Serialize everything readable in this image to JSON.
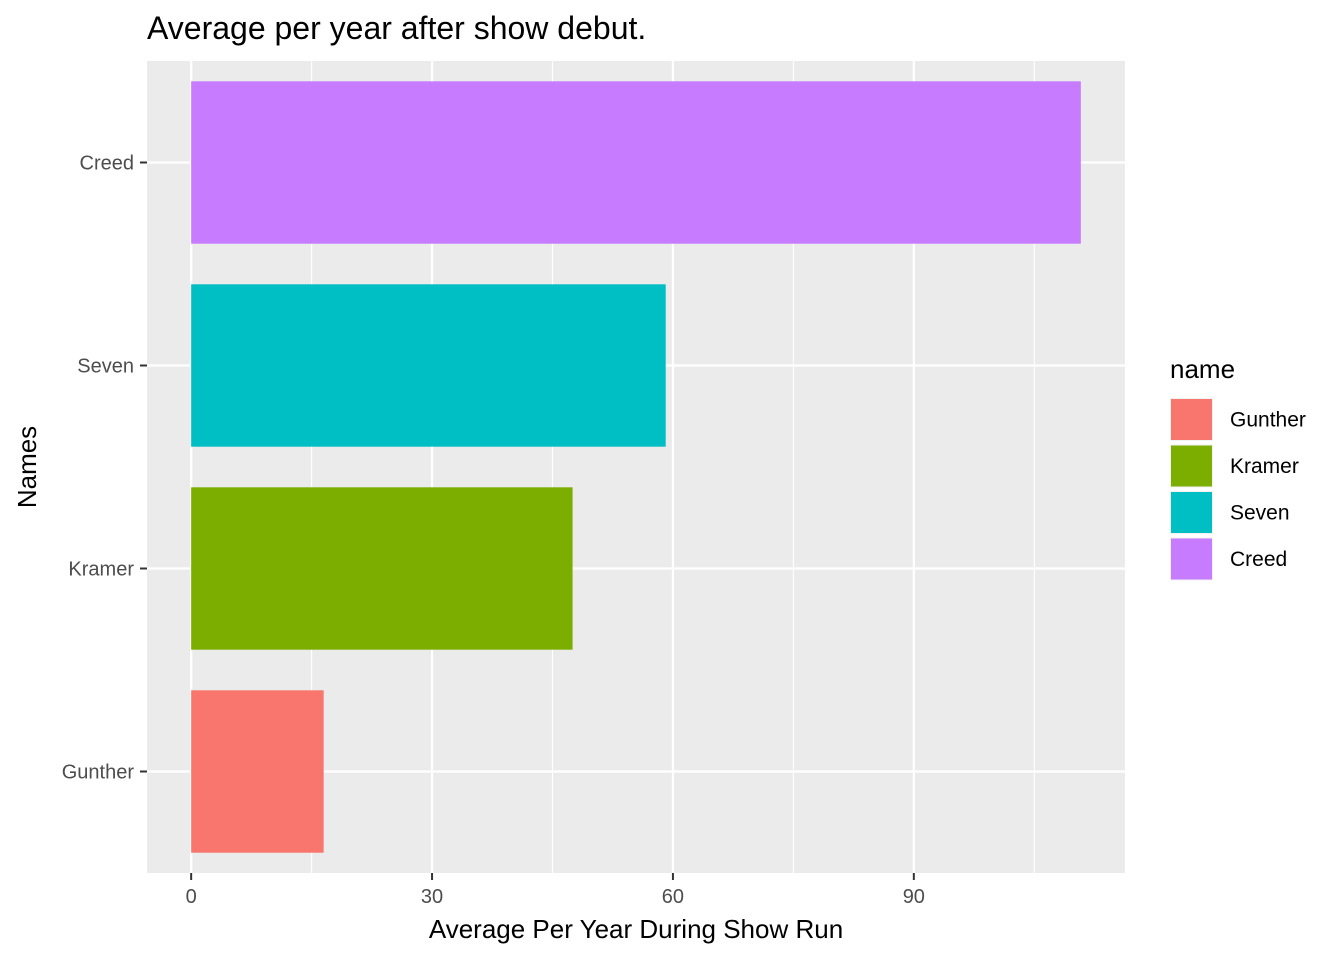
{
  "chart_data": {
    "type": "bar",
    "orientation": "horizontal",
    "title": "Average per year after show debut.",
    "xlabel": "Average Per Year During Show Run",
    "ylabel": "Names",
    "categories": [
      "Gunther",
      "Kramer",
      "Seven",
      "Creed"
    ],
    "values": [
      16.5,
      47.5,
      59.1,
      110.8
    ],
    "colors": [
      "#F8766D",
      "#7CAE00",
      "#00BFC4",
      "#C77CFF"
    ],
    "xlim": [
      -5.5,
      116.3
    ],
    "xticks": [
      0,
      30,
      60,
      90
    ],
    "grid": true,
    "legend": {
      "title": "name",
      "position": "right",
      "entries": [
        "Gunther",
        "Kramer",
        "Seven",
        "Creed"
      ]
    }
  }
}
